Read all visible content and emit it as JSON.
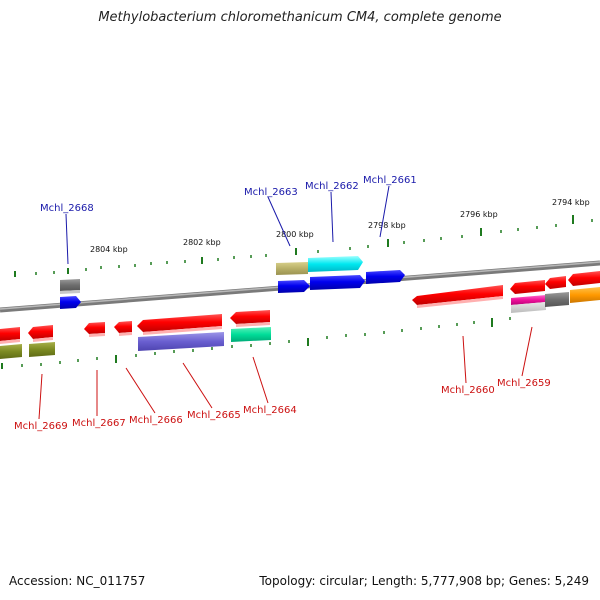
{
  "title": "Methylobacterium chloromethanicum CM4, complete genome",
  "footer": {
    "accession": "Accession: NC_011757",
    "topology": "Topology: circular; Length: 5,777,908 bp; Genes: 5,249"
  },
  "ticks": [
    "2804 kbp",
    "2802 kbp",
    "2800 kbp",
    "2798 kbp",
    "2796 kbp",
    "2794 kbp"
  ],
  "labels_top": [
    "Mchl_2668",
    "Mchl_2663",
    "Mchl_2662",
    "Mchl_2661"
  ],
  "labels_bottom": [
    "Mchl_2669",
    "Mchl_2667",
    "Mchl_2666",
    "Mchl_2665",
    "Mchl_2664",
    "Mchl_2660",
    "Mchl_2659"
  ],
  "colors": {
    "top_label": "#1a1aaa",
    "bottom_label": "#cc1111",
    "backbone": "#8a8a8a",
    "tick": "#1f7a1f"
  }
}
